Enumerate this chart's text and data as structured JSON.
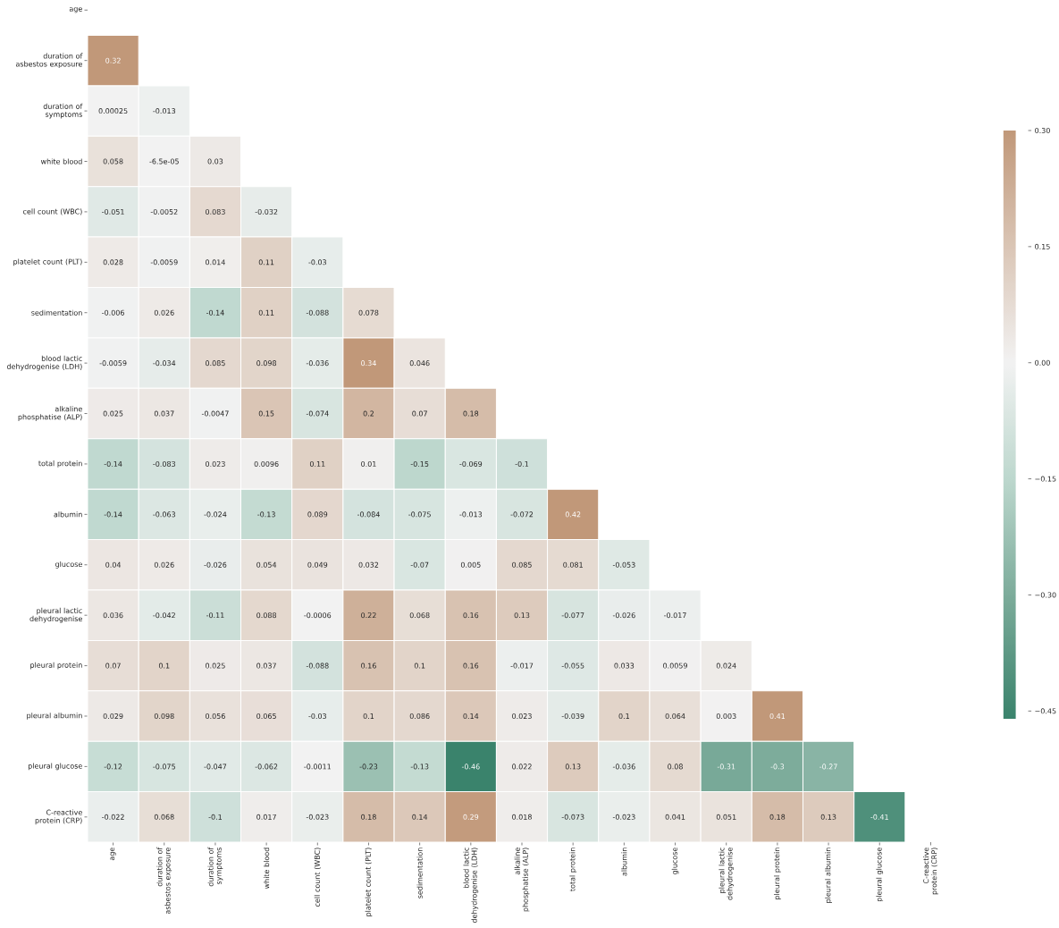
{
  "chart_data": {
    "type": "heatmap",
    "categories": [
      "age",
      "duration of asbestos exposure",
      "duration of symptoms",
      "white blood",
      "cell count (WBC)",
      "platelet count (PLT)",
      "sedimentation",
      "blood lactic dehydrogenise (LDH)",
      "alkaline phosphatise (ALP)",
      "total protein",
      "albumin",
      "glucose",
      "pleural lactic dehydrogenise",
      "pleural protein",
      "pleural albumin",
      "pleural glucose",
      "C-reactive protein (CRP)"
    ],
    "y_categories": [
      "age",
      "duration of asbestos exposure",
      "duration of symptoms",
      "white blood",
      "cell count (WBC)",
      "platelet count (PLT)",
      "sedimentation",
      "blood lactic dehydrogenise (LDH)",
      "alkaline phosphatise (ALP)",
      "total protein",
      "albumin",
      "glucose",
      "pleural lactic dehydrogenise",
      "pleural protein",
      "pleural albumin",
      "pleural glucose",
      "C-reactive protein (CRP)"
    ],
    "cells": [
      [
        null,
        null,
        null,
        null,
        null,
        null,
        null,
        null,
        null,
        null,
        null,
        null,
        null,
        null,
        null,
        null,
        null
      ],
      [
        0.32,
        null,
        null,
        null,
        null,
        null,
        null,
        null,
        null,
        null,
        null,
        null,
        null,
        null,
        null,
        null,
        null
      ],
      [
        0.00025,
        -0.013,
        null,
        null,
        null,
        null,
        null,
        null,
        null,
        null,
        null,
        null,
        null,
        null,
        null,
        null,
        null
      ],
      [
        0.058,
        -6.5e-05,
        0.03,
        null,
        null,
        null,
        null,
        null,
        null,
        null,
        null,
        null,
        null,
        null,
        null,
        null,
        null
      ],
      [
        -0.051,
        -0.0052,
        0.083,
        -0.032,
        null,
        null,
        null,
        null,
        null,
        null,
        null,
        null,
        null,
        null,
        null,
        null,
        null
      ],
      [
        0.028,
        -0.0059,
        0.014,
        0.11,
        -0.03,
        null,
        null,
        null,
        null,
        null,
        null,
        null,
        null,
        null,
        null,
        null,
        null
      ],
      [
        -0.006,
        0.026,
        -0.14,
        0.11,
        -0.088,
        0.078,
        null,
        null,
        null,
        null,
        null,
        null,
        null,
        null,
        null,
        null,
        null
      ],
      [
        -0.0059,
        -0.034,
        0.085,
        0.098,
        -0.036,
        0.34,
        0.046,
        null,
        null,
        null,
        null,
        null,
        null,
        null,
        null,
        null,
        null
      ],
      [
        0.025,
        0.037,
        -0.0047,
        0.15,
        -0.074,
        0.2,
        0.07,
        0.18,
        null,
        null,
        null,
        null,
        null,
        null,
        null,
        null,
        null
      ],
      [
        -0.14,
        -0.083,
        0.023,
        0.0096,
        0.11,
        0.01,
        -0.15,
        -0.069,
        -0.1,
        null,
        null,
        null,
        null,
        null,
        null,
        null,
        null
      ],
      [
        -0.14,
        -0.063,
        -0.024,
        -0.13,
        0.089,
        -0.084,
        -0.075,
        -0.013,
        -0.072,
        0.42,
        null,
        null,
        null,
        null,
        null,
        null,
        null
      ],
      [
        0.04,
        0.026,
        -0.026,
        0.054,
        0.049,
        0.032,
        -0.07,
        0.005,
        0.085,
        0.081,
        -0.053,
        null,
        null,
        null,
        null,
        null,
        null
      ],
      [
        0.036,
        -0.042,
        -0.11,
        0.088,
        -0.0006,
        0.22,
        0.068,
        0.16,
        0.13,
        -0.077,
        -0.026,
        -0.017,
        null,
        null,
        null,
        null,
        null
      ],
      [
        0.07,
        0.1,
        0.025,
        0.037,
        -0.088,
        0.16,
        0.1,
        0.16,
        -0.017,
        -0.055,
        0.033,
        0.0059,
        0.024,
        null,
        null,
        null,
        null
      ],
      [
        0.029,
        0.098,
        0.056,
        0.065,
        -0.03,
        0.1,
        0.086,
        0.14,
        0.023,
        -0.039,
        0.1,
        0.064,
        0.003,
        0.41,
        null,
        null,
        null
      ],
      [
        -0.12,
        -0.075,
        -0.047,
        -0.062,
        -0.0011,
        -0.23,
        -0.13,
        -0.46,
        0.022,
        0.13,
        -0.036,
        0.08,
        -0.31,
        -0.3,
        -0.27,
        null,
        null
      ],
      [
        -0.022,
        0.068,
        -0.1,
        0.017,
        -0.023,
        0.18,
        0.14,
        0.29,
        0.018,
        -0.073,
        -0.023,
        0.041,
        0.051,
        0.18,
        0.13,
        -0.41,
        null
      ]
    ],
    "clim": [
      -0.46,
      0.3
    ],
    "cticks": [
      {
        "value": 0.3,
        "label": "0.30"
      },
      {
        "value": 0.15,
        "label": "0.15"
      },
      {
        "value": 0,
        "label": "0.00"
      },
      {
        "value": -0.15,
        "label": "−0.15"
      },
      {
        "value": -0.3,
        "label": "−0.30"
      },
      {
        "value": -0.45,
        "label": "−0.45"
      }
    ],
    "data_labels": true
  }
}
